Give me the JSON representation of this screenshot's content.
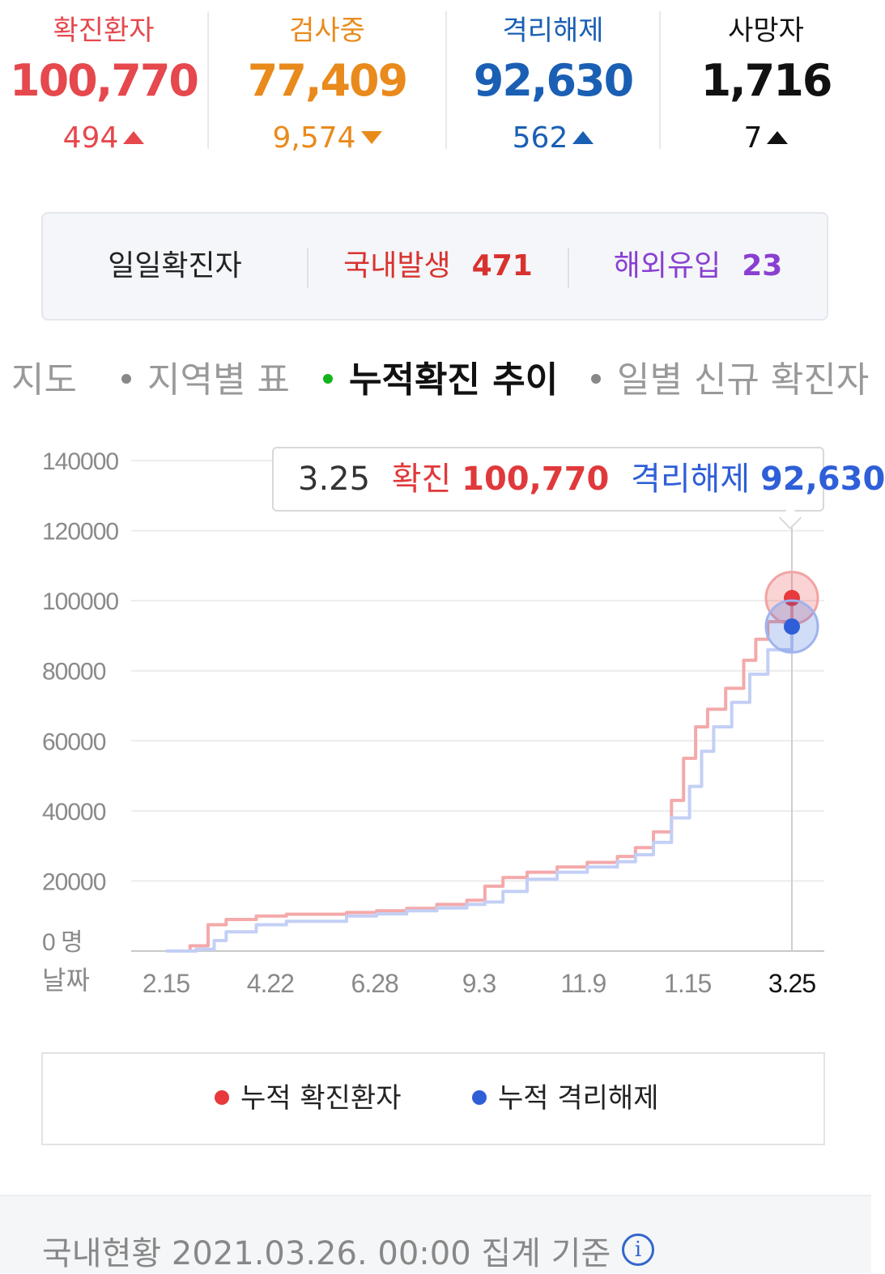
{
  "stats": [
    {
      "label": "확진환자",
      "value": "100,770",
      "delta": "494",
      "direction": "up",
      "color": "#e5484d"
    },
    {
      "label": "검사중",
      "value": "77,409",
      "delta": "9,574",
      "direction": "down",
      "color": "#e98a1c"
    },
    {
      "label": "격리해제",
      "value": "92,630",
      "delta": "562",
      "direction": "up",
      "color": "#1a5fb4"
    },
    {
      "label": "사망자",
      "value": "1,716",
      "delta": "7",
      "direction": "up",
      "color": "#111111"
    }
  ],
  "daily": {
    "title": "일일확진자",
    "domestic_label": "국내발생",
    "domestic_value": "471",
    "overseas_label": "해외유입",
    "overseas_value": "23",
    "domestic_color": "#d8322f",
    "overseas_color": "#8a3fd1"
  },
  "tabs": [
    {
      "label": "지도",
      "active": false
    },
    {
      "label": "지역별 표",
      "active": false
    },
    {
      "label": "누적확진 추이",
      "active": true
    },
    {
      "label": "일별 신규 확진자",
      "active": false
    }
  ],
  "tooltip": {
    "date": "3.25",
    "confirmed_label": "확진",
    "confirmed_value": "100,770",
    "released_label": "격리해제",
    "released_value": "92,630"
  },
  "chart_data": {
    "type": "line",
    "x": [
      "2.15",
      "4.22",
      "6.28",
      "9.3",
      "11.9",
      "1.15",
      "3.25"
    ],
    "x_tick_labels": [
      "2.15",
      "4.22",
      "6.28",
      "9.3",
      "11.9",
      "1.15",
      "3.25"
    ],
    "ylim": [
      0,
      140000
    ],
    "y_ticks": [
      0,
      20000,
      40000,
      60000,
      80000,
      100000,
      120000,
      140000
    ],
    "y_tick_labels": [
      "0",
      "20000",
      "40000",
      "60000",
      "80000",
      "100000",
      "120000",
      "140000"
    ],
    "y_unit": "명",
    "x_axis_label": "날짜",
    "grid": true,
    "highlighted_x": "3.25",
    "series": [
      {
        "name": "누적 확진환자",
        "color": "#e8393c",
        "points": [
          [
            0,
            0
          ],
          [
            0.04,
            1500
          ],
          [
            0.07,
            7500
          ],
          [
            0.1,
            9000
          ],
          [
            0.15,
            10000
          ],
          [
            0.2,
            10500
          ],
          [
            0.3,
            11000
          ],
          [
            0.35,
            11500
          ],
          [
            0.4,
            12200
          ],
          [
            0.45,
            13300
          ],
          [
            0.5,
            14500
          ],
          [
            0.53,
            18500
          ],
          [
            0.56,
            21000
          ],
          [
            0.6,
            22500
          ],
          [
            0.65,
            24000
          ],
          [
            0.7,
            25300
          ],
          [
            0.75,
            27000
          ],
          [
            0.78,
            29500
          ],
          [
            0.81,
            34000
          ],
          [
            0.84,
            43000
          ],
          [
            0.86,
            55000
          ],
          [
            0.88,
            64000
          ],
          [
            0.9,
            69000
          ],
          [
            0.93,
            75000
          ],
          [
            0.96,
            83000
          ],
          [
            0.98,
            89000
          ],
          [
            1.0,
            94000
          ],
          [
            1.04,
            100770
          ]
        ]
      },
      {
        "name": "누적 격리해제",
        "color": "#2f5fd8",
        "points": [
          [
            0,
            0
          ],
          [
            0.03,
            0
          ],
          [
            0.05,
            500
          ],
          [
            0.08,
            3000
          ],
          [
            0.1,
            5500
          ],
          [
            0.15,
            7500
          ],
          [
            0.2,
            8500
          ],
          [
            0.3,
            10000
          ],
          [
            0.35,
            10600
          ],
          [
            0.4,
            11500
          ],
          [
            0.45,
            12300
          ],
          [
            0.5,
            13300
          ],
          [
            0.53,
            14000
          ],
          [
            0.56,
            17000
          ],
          [
            0.6,
            20500
          ],
          [
            0.65,
            22500
          ],
          [
            0.7,
            24000
          ],
          [
            0.75,
            25500
          ],
          [
            0.78,
            27500
          ],
          [
            0.81,
            31000
          ],
          [
            0.84,
            38000
          ],
          [
            0.87,
            47000
          ],
          [
            0.89,
            57000
          ],
          [
            0.91,
            64000
          ],
          [
            0.94,
            71000
          ],
          [
            0.97,
            79000
          ],
          [
            1.0,
            86000
          ],
          [
            1.04,
            92630
          ]
        ]
      }
    ]
  },
  "legend": [
    {
      "label": "누적 확진환자",
      "color": "#e8393c"
    },
    {
      "label": "누적 격리해제",
      "color": "#2f5fd8"
    }
  ],
  "footer": {
    "text": "국내현황 2021.03.26. 00:00 집계 기준",
    "icon": "info-icon"
  }
}
